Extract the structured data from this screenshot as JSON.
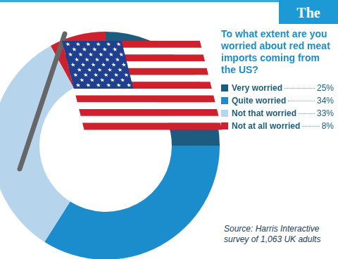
{
  "brand": "The Grocer",
  "source": "Source: Harris Interactive survey of 1,063 UK adults",
  "chart_data": {
    "type": "doughnut",
    "title": "To what extent are you worried about red meat imports coming from the US?",
    "categories": [
      "Very worried",
      "Quite worried",
      "Not that worried",
      "Not at all worried"
    ],
    "values": [
      25,
      34,
      33,
      8
    ],
    "value_labels": [
      "25%",
      "34%",
      "33%",
      "8%"
    ],
    "colors": [
      "#1c5d7f",
      "#1b8dcc",
      "#b6d5ec",
      "#d0202e"
    ],
    "legend": "right"
  }
}
